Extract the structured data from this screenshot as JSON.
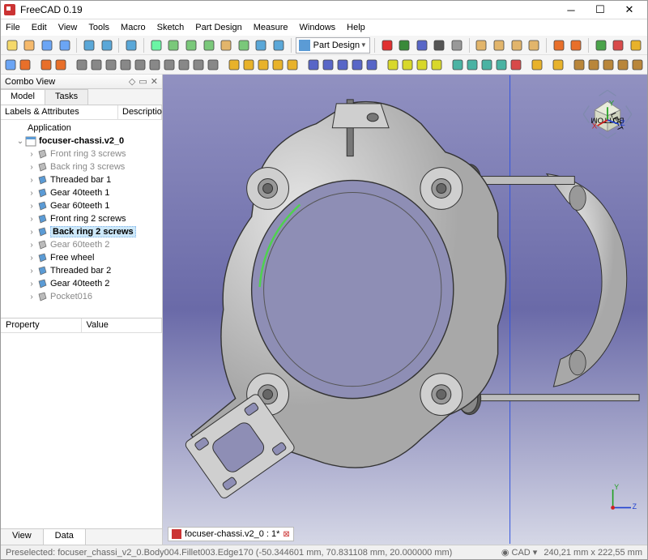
{
  "app": {
    "title": "FreeCAD 0.19"
  },
  "menu": [
    "File",
    "Edit",
    "View",
    "Tools",
    "Macro",
    "Sketch",
    "Part Design",
    "Measure",
    "Windows",
    "Help"
  ],
  "workbench": {
    "selected": "Part Design"
  },
  "toolbars": {
    "row1_icons": [
      {
        "name": "new",
        "c": "#f5d96b"
      },
      {
        "name": "open",
        "c": "#f5b96b"
      },
      {
        "name": "save",
        "c": "#6ba5f5"
      },
      {
        "name": "saveas",
        "c": "#6ba5f5"
      },
      {
        "name": "sep"
      },
      {
        "name": "undo",
        "c": "#5aa7d8"
      },
      {
        "name": "redo",
        "c": "#5aa7d8"
      },
      {
        "name": "sep"
      },
      {
        "name": "refresh",
        "c": "#5aa7d8"
      },
      {
        "name": "sep"
      },
      {
        "name": "link",
        "c": "#6bf5a5"
      },
      {
        "name": "linkgroup",
        "c": "#7ac87a"
      },
      {
        "name": "linksub",
        "c": "#7ac87a"
      },
      {
        "name": "unlink",
        "c": "#7ac87a"
      },
      {
        "name": "import",
        "c": "#e2b56b"
      },
      {
        "name": "link2",
        "c": "#7ac87a"
      },
      {
        "name": "goto",
        "c": "#5aa7d8"
      },
      {
        "name": "sel",
        "c": "#5aa7d8"
      },
      {
        "name": "sep"
      },
      {
        "name": "wb",
        "c": null
      },
      {
        "name": "sep"
      },
      {
        "name": "rec",
        "c": "#e03030"
      },
      {
        "name": "stop",
        "c": "#3a8a3a"
      },
      {
        "name": "macros",
        "c": "#5866c7"
      },
      {
        "name": "play",
        "c": "#555"
      },
      {
        "name": "debug",
        "c": "#999"
      },
      {
        "name": "sep"
      },
      {
        "name": "fit",
        "c": "#e2b56b"
      },
      {
        "name": "fitsel",
        "c": "#e2b56b"
      },
      {
        "name": "iso",
        "c": "#e2b56b"
      },
      {
        "name": "wire",
        "c": "#e2b56b"
      },
      {
        "name": "sep"
      },
      {
        "name": "left",
        "c": "#e86f2a"
      },
      {
        "name": "right",
        "c": "#e86f2a"
      },
      {
        "name": "sep"
      },
      {
        "name": "meas1",
        "c": "#4aa34a"
      },
      {
        "name": "meas2",
        "c": "#d84a4a"
      },
      {
        "name": "meas3",
        "c": "#e8b22a"
      }
    ],
    "row2_icons": [
      {
        "name": "body",
        "c": "#6ba5f5"
      },
      {
        "name": "sketch",
        "c": "#e86f2a"
      },
      {
        "name": "sep"
      },
      {
        "name": "edit",
        "c": "#e86f2a"
      },
      {
        "name": "map",
        "c": "#e86f2a"
      },
      {
        "name": "sep"
      },
      {
        "name": "point",
        "c": "#888"
      },
      {
        "name": "line",
        "c": "#888"
      },
      {
        "name": "arc",
        "c": "#888"
      },
      {
        "name": "circle",
        "c": "#888"
      },
      {
        "name": "ellipse",
        "c": "#888"
      },
      {
        "name": "rect",
        "c": "#888"
      },
      {
        "name": "poly",
        "c": "#888"
      },
      {
        "name": "slot",
        "c": "#888"
      },
      {
        "name": "fillet",
        "c": "#888"
      },
      {
        "name": "trim",
        "c": "#888"
      },
      {
        "name": "sep"
      },
      {
        "name": "pad",
        "c": "#e8b22a"
      },
      {
        "name": "rev",
        "c": "#e8b22a"
      },
      {
        "name": "loft",
        "c": "#e8b22a"
      },
      {
        "name": "sweep",
        "c": "#e8b22a"
      },
      {
        "name": "helix",
        "c": "#e8b22a"
      },
      {
        "name": "sep"
      },
      {
        "name": "pocket",
        "c": "#5866c7"
      },
      {
        "name": "hole",
        "c": "#5866c7"
      },
      {
        "name": "groove",
        "c": "#5866c7"
      },
      {
        "name": "sloft",
        "c": "#5866c7"
      },
      {
        "name": "ssweep",
        "c": "#5866c7"
      },
      {
        "name": "sep"
      },
      {
        "name": "mirror",
        "c": "#d8d82a"
      },
      {
        "name": "linear",
        "c": "#d8d82a"
      },
      {
        "name": "polar",
        "c": "#d8d82a"
      },
      {
        "name": "multi",
        "c": "#d8d82a"
      },
      {
        "name": "sep"
      },
      {
        "name": "f1",
        "c": "#4ab3a3"
      },
      {
        "name": "f2",
        "c": "#4ab3a3"
      },
      {
        "name": "f3",
        "c": "#4ab3a3"
      },
      {
        "name": "f4",
        "c": "#4ab3a3"
      },
      {
        "name": "f5",
        "c": "#d84a4a"
      },
      {
        "name": "sep"
      },
      {
        "name": "bool",
        "c": "#e8b22a"
      },
      {
        "name": "sep"
      },
      {
        "name": "clone",
        "c": "#e8b22a"
      },
      {
        "name": "sep"
      },
      {
        "name": "p1",
        "c": "#b9863a"
      },
      {
        "name": "p2",
        "c": "#b9863a"
      },
      {
        "name": "p3",
        "c": "#b9863a"
      },
      {
        "name": "p4",
        "c": "#b9863a"
      },
      {
        "name": "p5",
        "c": "#b9863a"
      },
      {
        "name": "sep"
      },
      {
        "name": "sp",
        "c": "#b46aa0"
      },
      {
        "name": "sep"
      },
      {
        "name": "x1",
        "c": "#e86f2a"
      },
      {
        "name": "x2",
        "c": "#e86f2a"
      }
    ]
  },
  "combo": {
    "title": "Combo View",
    "tabs": [
      "Model",
      "Tasks"
    ],
    "active_tab": 0,
    "tree_header": [
      "Labels & Attributes",
      "Descriptio"
    ],
    "tree": [
      {
        "depth": 0,
        "tw": "",
        "icon": "app",
        "label": "Application",
        "bold": false,
        "dim": false
      },
      {
        "depth": 1,
        "tw": "v",
        "icon": "doc",
        "label": "focuser-chassi.v2_0",
        "bold": true,
        "dim": false
      },
      {
        "depth": 2,
        "tw": ">",
        "icon": "body-dim",
        "label": "Front ring 3 screws",
        "bold": false,
        "dim": true
      },
      {
        "depth": 2,
        "tw": ">",
        "icon": "body-dim",
        "label": "Back ring 3 screws",
        "bold": false,
        "dim": true
      },
      {
        "depth": 2,
        "tw": ">",
        "icon": "body",
        "label": "Threaded bar 1",
        "bold": false,
        "dim": false
      },
      {
        "depth": 2,
        "tw": ">",
        "icon": "body",
        "label": "Gear 40teeth 1",
        "bold": false,
        "dim": false
      },
      {
        "depth": 2,
        "tw": ">",
        "icon": "body",
        "label": "Gear 60teeth 1",
        "bold": false,
        "dim": false
      },
      {
        "depth": 2,
        "tw": ">",
        "icon": "body",
        "label": "Front ring 2 screws",
        "bold": false,
        "dim": false
      },
      {
        "depth": 2,
        "tw": ">",
        "icon": "body",
        "label": "Back ring 2 screws",
        "bold": true,
        "dim": false,
        "sel": true
      },
      {
        "depth": 2,
        "tw": ">",
        "icon": "body-dim",
        "label": "Gear 60teeth 2",
        "bold": false,
        "dim": true
      },
      {
        "depth": 2,
        "tw": ">",
        "icon": "body",
        "label": "Free wheel",
        "bold": false,
        "dim": false
      },
      {
        "depth": 2,
        "tw": ">",
        "icon": "body",
        "label": "Threaded bar 2",
        "bold": false,
        "dim": false
      },
      {
        "depth": 2,
        "tw": ">",
        "icon": "body",
        "label": "Gear 40teeth 2",
        "bold": false,
        "dim": false
      },
      {
        "depth": 2,
        "tw": ">",
        "icon": "feat-dim",
        "label": "Pocket016",
        "bold": false,
        "dim": true
      }
    ],
    "prop_header": [
      "Property",
      "Value"
    ],
    "bottom_tabs": [
      "View",
      "Data"
    ],
    "bottom_active": 1
  },
  "document_tab": {
    "label": "focuser-chassi.v2_0 : 1*"
  },
  "status": {
    "left": "Preselected: focuser_chassi_v2_0.Body004.Fillet003.Edge170 (-50.344601 mm, 70.831108 mm, 20.000000 mm)",
    "nav": "CAD",
    "dim": "240,21 mm x 222,55 mm"
  },
  "colors": {
    "bg_top": "#9191c1",
    "bg_mid": "#6a6aa8",
    "bg_bot": "#d5d7e6",
    "model_fill": "#c8c8c8",
    "model_stroke": "#333",
    "highlight": "#4fd24f",
    "x": "#d02020",
    "y": "#20a020",
    "z": "#2040d0"
  },
  "navcube": {
    "face": "BOTTOM",
    "side": "LEFT"
  }
}
